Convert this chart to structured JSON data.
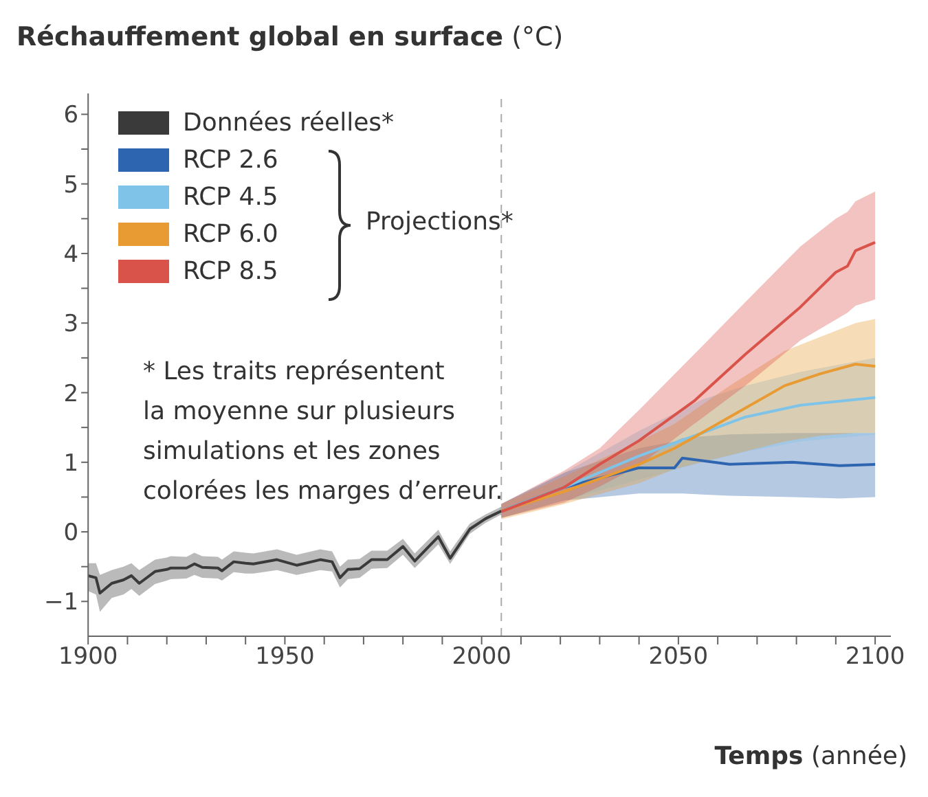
{
  "chart_data": {
    "type": "line",
    "ylabel": "Réchauffement global en surface (°C)",
    "xlabel": "Temps (année)",
    "xlim": [
      1900,
      2104
    ],
    "xticks": [
      1900,
      {
        "value": 1910,
        "label": null
      },
      {
        "value": 1920,
        "label": null
      },
      {
        "value": 1930,
        "label": null
      },
      {
        "value": 1940,
        "label": null
      },
      1950,
      {
        "value": 1960,
        "label": null
      },
      {
        "value": 1970,
        "label": null
      },
      {
        "value": 1980,
        "label": null
      },
      {
        "value": 1990,
        "label": null
      },
      2000,
      {
        "value": 2010,
        "label": null
      },
      {
        "value": 2020,
        "label": null
      },
      {
        "value": 2030,
        "label": null
      },
      {
        "value": 2040,
        "label": null
      },
      2050,
      {
        "value": 2060,
        "label": null
      },
      {
        "value": 2070,
        "label": null
      },
      {
        "value": 2080,
        "label": null
      },
      {
        "value": 2090,
        "label": null
      },
      2100
    ],
    "ylim": [
      -1.5,
      6.3
    ],
    "yticks": [
      -1,
      {
        "value": -0.5,
        "label": null
      },
      0,
      {
        "value": 0.5,
        "label": null
      },
      1,
      {
        "value": 1.5,
        "label": null
      },
      2,
      {
        "value": 2.5,
        "label": null
      },
      3,
      {
        "value": 3.5,
        "label": null
      },
      4,
      {
        "value": 4.5,
        "label": null
      },
      5,
      {
        "value": 5.5,
        "label": null
      },
      6
    ],
    "grid": false,
    "legend": "top left",
    "marker": "none",
    "line_style": "solid",
    "series": [
      {
        "name": "Données réelles*",
        "color": "#3a3a3a",
        "x": [
          1900,
          1902,
          1903,
          1906,
          1909,
          1911,
          1913,
          1917,
          1920,
          1921,
          1925,
          1927,
          1929,
          1933,
          1934,
          1937,
          1940,
          1942,
          1948,
          1953,
          1959,
          1962,
          1964,
          1966,
          1969,
          1972,
          1976,
          1980,
          1983,
          1989,
          1992,
          1997,
          2001,
          2005
        ],
        "values": [
          -0.63,
          -0.66,
          -0.88,
          -0.74,
          -0.69,
          -0.63,
          -0.74,
          -0.57,
          -0.54,
          -0.52,
          -0.52,
          -0.46,
          -0.51,
          -0.52,
          -0.56,
          -0.43,
          -0.45,
          -0.46,
          -0.4,
          -0.48,
          -0.4,
          -0.43,
          -0.66,
          -0.54,
          -0.53,
          -0.4,
          -0.4,
          -0.21,
          -0.42,
          -0.07,
          -0.38,
          0.04,
          0.19,
          0.3
        ],
        "lower": [
          -0.85,
          -0.9,
          -1.15,
          -0.95,
          -0.9,
          -0.82,
          -0.92,
          -0.75,
          -0.7,
          -0.68,
          -0.67,
          -0.62,
          -0.66,
          -0.67,
          -0.7,
          -0.58,
          -0.6,
          -0.6,
          -0.55,
          -0.62,
          -0.55,
          -0.57,
          -0.8,
          -0.68,
          -0.66,
          -0.53,
          -0.52,
          -0.33,
          -0.52,
          -0.18,
          -0.46,
          -0.03,
          0.13,
          0.25
        ],
        "upper": [
          -0.45,
          -0.45,
          -0.62,
          -0.55,
          -0.5,
          -0.45,
          -0.55,
          -0.4,
          -0.37,
          -0.35,
          -0.36,
          -0.3,
          -0.35,
          -0.36,
          -0.4,
          -0.28,
          -0.3,
          -0.31,
          -0.25,
          -0.33,
          -0.25,
          -0.28,
          -0.5,
          -0.4,
          -0.39,
          -0.27,
          -0.27,
          -0.1,
          -0.31,
          0.03,
          -0.28,
          0.12,
          0.25,
          0.36
        ]
      },
      {
        "name": "RCP 2.6",
        "color": "#2e65b0",
        "x": [
          2005,
          2021,
          2040,
          2049,
          2051,
          2063,
          2079,
          2091,
          2100
        ],
        "values": [
          0.3,
          0.64,
          0.92,
          0.92,
          1.06,
          0.97,
          1.0,
          0.95,
          0.97
        ],
        "lower": [
          0.2,
          0.45,
          0.55,
          0.55,
          0.55,
          0.52,
          0.5,
          0.48,
          0.5
        ],
        "upper": [
          0.4,
          0.85,
          1.2,
          1.3,
          1.35,
          1.4,
          1.42,
          1.42,
          1.42
        ]
      },
      {
        "name": "RCP 4.5",
        "color": "#7fc4e8",
        "x": [
          2005,
          2021,
          2040,
          2056,
          2067,
          2081,
          2100
        ],
        "values": [
          0.3,
          0.64,
          1.09,
          1.42,
          1.65,
          1.82,
          1.93
        ],
        "lower": [
          0.2,
          0.45,
          0.75,
          1.0,
          1.15,
          1.3,
          1.4
        ],
        "upper": [
          0.4,
          0.85,
          1.45,
          1.9,
          2.1,
          2.3,
          2.5
        ]
      },
      {
        "name": "RCP 6.0",
        "color": "#e89a33",
        "x": [
          2005,
          2021,
          2040,
          2049,
          2063,
          2077,
          2086,
          2095,
          2100
        ],
        "values": [
          0.3,
          0.58,
          0.97,
          1.2,
          1.65,
          2.1,
          2.27,
          2.41,
          2.38
        ],
        "lower": [
          0.18,
          0.4,
          0.7,
          0.9,
          1.1,
          1.3,
          1.38,
          1.42,
          1.42
        ],
        "upper": [
          0.4,
          0.8,
          1.3,
          1.55,
          2.1,
          2.6,
          2.8,
          3.0,
          3.06
        ]
      },
      {
        "name": "RCP 8.5",
        "color": "#d9534a",
        "x": [
          2005,
          2021,
          2030,
          2040,
          2054,
          2067,
          2081,
          2090,
          2093,
          2095,
          2100
        ],
        "values": [
          0.29,
          0.64,
          0.97,
          1.31,
          1.88,
          2.55,
          3.23,
          3.73,
          3.82,
          4.04,
          4.16
        ],
        "lower": [
          0.2,
          0.42,
          0.65,
          0.95,
          1.55,
          2.1,
          2.75,
          3.05,
          3.15,
          3.25,
          3.34
        ],
        "upper": [
          0.4,
          0.88,
          1.2,
          1.75,
          2.55,
          3.3,
          4.1,
          4.5,
          4.6,
          4.75,
          4.89
        ]
      }
    ],
    "ref_lines": [
      {
        "axis": "x",
        "value": 2005,
        "color": "#aaaaaa",
        "line_style": "dashed"
      }
    ],
    "annotations": [
      "Projections*",
      "* Les traits représentent\nla moyenne sur plusieurs\nsimulations et les zones\ncolorées les marges d’erreur."
    ]
  }
}
